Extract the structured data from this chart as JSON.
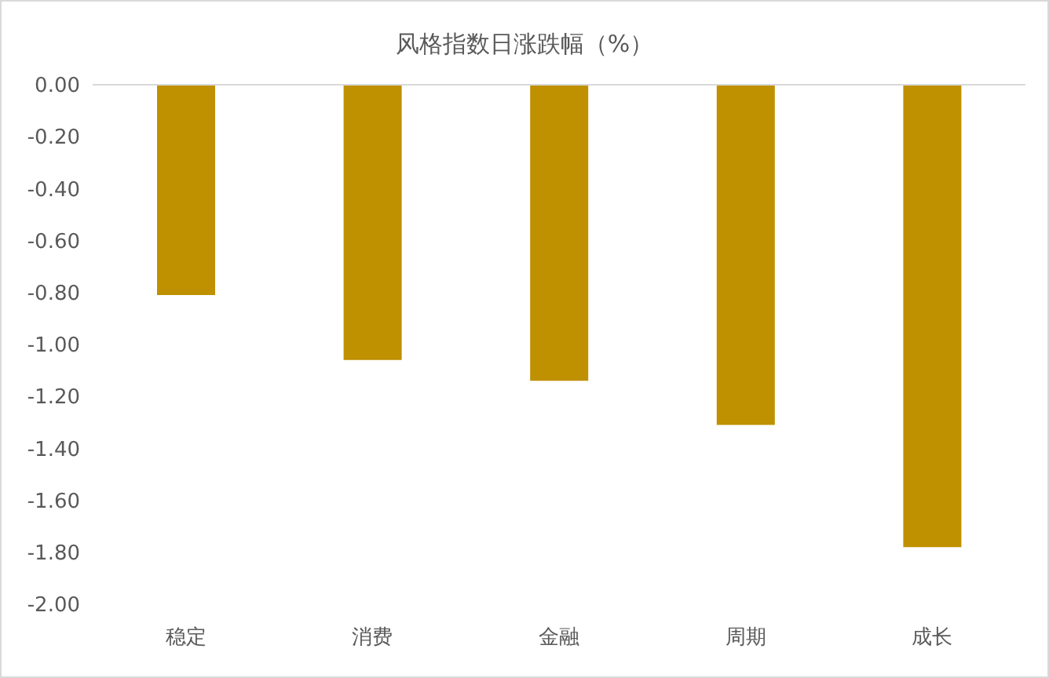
{
  "chart_data": {
    "type": "bar",
    "title": "风格指数日涨跌幅（%）",
    "categories": [
      "稳定",
      "消费",
      "金融",
      "周期",
      "成长"
    ],
    "values": [
      -0.81,
      -1.06,
      -1.14,
      -1.31,
      -1.78
    ],
    "color": "#bf9000",
    "ylim": [
      -2,
      0
    ],
    "yticks": [
      {
        "value": 0,
        "label": "0.00"
      },
      {
        "value": -0.2,
        "label": "-0.20"
      },
      {
        "value": -0.4,
        "label": "-0.40"
      },
      {
        "value": -0.6,
        "label": "-0.60"
      },
      {
        "value": -0.8,
        "label": "-0.80"
      },
      {
        "value": -1,
        "label": "-1.00"
      },
      {
        "value": -1.2,
        "label": "-1.20"
      },
      {
        "value": -1.4,
        "label": "-1.40"
      },
      {
        "value": -1.6,
        "label": "-1.60"
      },
      {
        "value": -1.8,
        "label": "-1.80"
      },
      {
        "value": -2,
        "label": "-2.00"
      }
    ],
    "grid": false,
    "legend": false
  }
}
